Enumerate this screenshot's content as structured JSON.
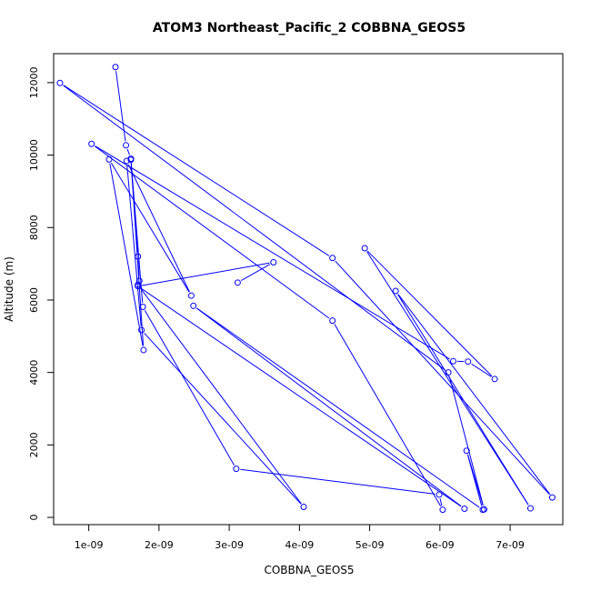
{
  "chart_data": {
    "type": "line",
    "title": "ATOM3 Northeast_Pacific_2 COBBNA_GEOS5",
    "xlabel": "COBBNA_GEOS5",
    "ylabel": "Altitude (m)",
    "xlim": [
      5e-10,
      7.75e-09
    ],
    "ylim": [
      -200,
      12800
    ],
    "x_ticks": [
      1e-09,
      2e-09,
      3e-09,
      4e-09,
      5e-09,
      6e-09,
      7e-09
    ],
    "x_tick_labels": [
      "1e-09",
      "2e-09",
      "3e-09",
      "4e-09",
      "5e-09",
      "6e-09",
      "7e-09"
    ],
    "y_ticks": [
      0,
      2000,
      4000,
      6000,
      8000,
      10000,
      12000
    ],
    "y_tick_labels": [
      "0",
      "2000",
      "4000",
      "6000",
      "8000",
      "10000",
      "12000"
    ],
    "line_color": "#0000ff",
    "marker": "open-circle",
    "grid": false,
    "legend": "none",
    "series": [
      {
        "points": [
          [
            1.38e-09,
            12430
          ],
          [
            1.53e-09,
            10270
          ],
          [
            1.6e-09,
            9900
          ],
          [
            1.7e-09,
            7200
          ],
          [
            1.72e-09,
            6530
          ],
          [
            1.7e-09,
            6420
          ],
          [
            4.06e-09,
            290
          ],
          [
            1.75e-09,
            5170
          ],
          [
            1.54e-09,
            9840
          ],
          [
            2.46e-09,
            6120
          ],
          [
            1.29e-09,
            9880
          ],
          [
            1.78e-09,
            4620
          ],
          [
            1.6e-09,
            9870
          ],
          [
            1.77e-09,
            5810
          ],
          [
            3.1e-09,
            1340
          ],
          [
            5.99e-09,
            630
          ],
          [
            6.04e-09,
            210
          ],
          [
            4.47e-09,
            5430
          ],
          [
            1.04e-09,
            10310
          ],
          [
            6.19e-09,
            4310
          ],
          [
            6.4e-09,
            4300
          ],
          [
            6.78e-09,
            3820
          ],
          [
            4.93e-09,
            7430
          ],
          [
            7.29e-09,
            250
          ],
          [
            5.37e-09,
            6250
          ],
          [
            7.6e-09,
            550
          ],
          [
            4.47e-09,
            7160
          ],
          [
            5.9e-10,
            11990
          ],
          [
            6.12e-09,
            4000
          ],
          [
            6.63e-09,
            220
          ],
          [
            6.38e-09,
            1840
          ],
          [
            6.61e-09,
            210
          ],
          [
            2.49e-09,
            5840
          ],
          [
            6.35e-09,
            240
          ],
          [
            1.7e-09,
            6380
          ],
          [
            3.63e-09,
            7040
          ],
          [
            3.12e-09,
            6480
          ]
        ]
      }
    ]
  }
}
